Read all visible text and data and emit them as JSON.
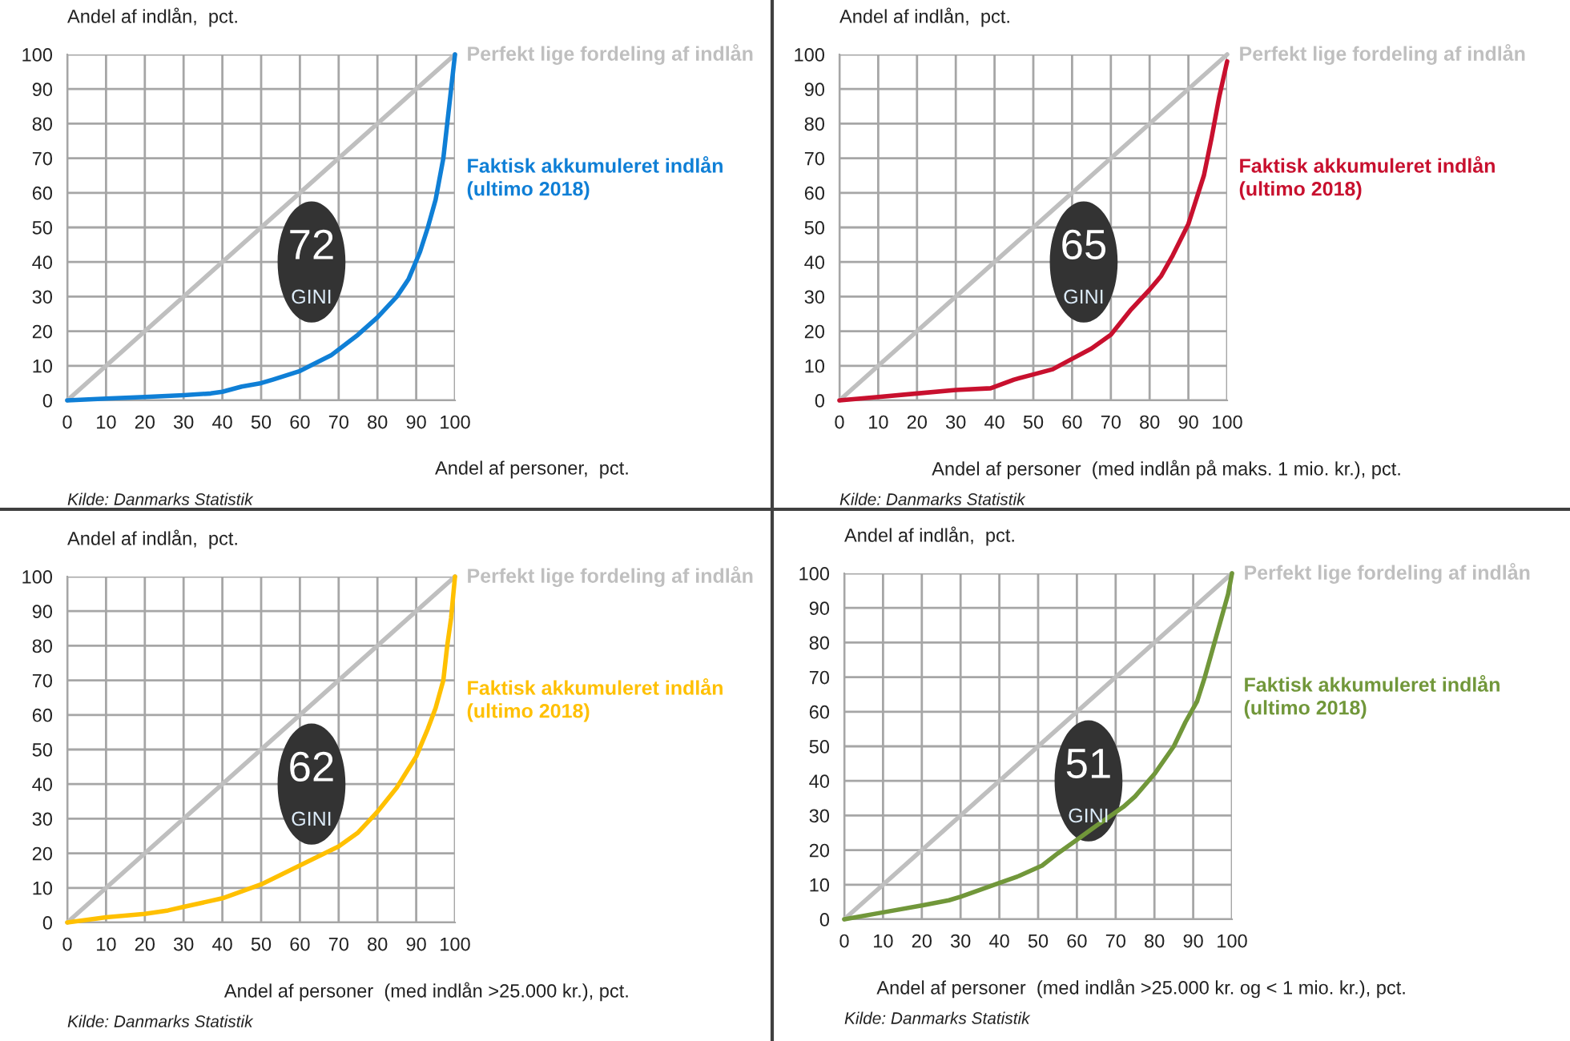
{
  "chart_data": [
    {
      "type": "line",
      "ylabel": "Andel af indlån,  pct.",
      "xlabel": "Andel af personer,  pct.",
      "xlim": [
        0,
        100
      ],
      "ylim": [
        0,
        100
      ],
      "xticks": [
        0,
        10,
        20,
        30,
        40,
        50,
        60,
        70,
        80,
        90,
        100
      ],
      "yticks": [
        0,
        10,
        20,
        30,
        40,
        50,
        60,
        70,
        80,
        90,
        100
      ],
      "grid": true,
      "legend": false,
      "annotations": [
        "72",
        "GINI",
        "Kilde: Danmarks Statistik"
      ],
      "series": [
        {
          "name": "Perfekt lige fordeling af indlån",
          "color": "#bfbfbf",
          "x": [
            0,
            100
          ],
          "values": [
            0,
            100
          ]
        },
        {
          "name": "Faktisk akkumuleret indlån\n(ultimo 2018)",
          "color": "#0f7fd6",
          "x": [
            0,
            10,
            20,
            30,
            37,
            40,
            45,
            50,
            53,
            60,
            68,
            75,
            80,
            85,
            88,
            91,
            93,
            95,
            97,
            98,
            99,
            100
          ],
          "values": [
            0,
            0.5,
            1,
            1.5,
            2,
            2.5,
            4,
            5,
            6,
            8.5,
            13,
            19,
            24,
            30,
            35,
            43,
            50,
            58,
            70,
            80,
            90,
            100
          ]
        }
      ]
    },
    {
      "type": "line",
      "ylabel": "Andel af indlån,  pct.",
      "xlabel": "Andel af personer  (med indlån på maks. 1 mio. kr.), pct.",
      "xlim": [
        0,
        100
      ],
      "ylim": [
        0,
        100
      ],
      "xticks": [
        0,
        10,
        20,
        30,
        40,
        50,
        60,
        70,
        80,
        90,
        100
      ],
      "yticks": [
        0,
        10,
        20,
        30,
        40,
        50,
        60,
        70,
        80,
        90,
        100
      ],
      "grid": true,
      "legend": false,
      "annotations": [
        "65",
        "GINI",
        "Kilde: Danmarks Statistik"
      ],
      "series": [
        {
          "name": "Perfekt lige fordeling af indlån",
          "color": "#bfbfbf",
          "x": [
            0,
            100
          ],
          "values": [
            0,
            100
          ]
        },
        {
          "name": "Faktisk akkumuleret indlån\n(ultimo 2018)",
          "color": "#c8102e",
          "x": [
            0,
            10,
            20,
            30,
            39,
            45,
            50,
            55,
            60,
            65,
            70,
            75,
            80,
            83,
            86,
            90,
            92,
            94,
            96,
            98,
            100
          ],
          "values": [
            0,
            1,
            2,
            3,
            3.5,
            6,
            7.5,
            9,
            12,
            15,
            19,
            26,
            32,
            36,
            42,
            51,
            58,
            65,
            76,
            88,
            98
          ]
        }
      ]
    },
    {
      "type": "line",
      "ylabel": "Andel af indlån,  pct.",
      "xlabel": "Andel af personer  (med indlån >25.000 kr.), pct.",
      "xlim": [
        0,
        100
      ],
      "ylim": [
        0,
        100
      ],
      "xticks": [
        0,
        10,
        20,
        30,
        40,
        50,
        60,
        70,
        80,
        90,
        100
      ],
      "yticks": [
        0,
        10,
        20,
        30,
        40,
        50,
        60,
        70,
        80,
        90,
        100
      ],
      "grid": true,
      "legend": false,
      "annotations": [
        "62",
        "GINI",
        "Kilde: Danmarks Statistik"
      ],
      "series": [
        {
          "name": "Perfekt lige fordeling af indlån",
          "color": "#bfbfbf",
          "x": [
            0,
            100
          ],
          "values": [
            0,
            100
          ]
        },
        {
          "name": "Faktisk akkumuleret indlån\n(ultimo 2018)",
          "color": "#ffc000",
          "x": [
            0,
            10,
            20,
            26,
            30,
            40,
            50,
            60,
            70,
            75,
            80,
            85,
            90,
            93,
            95,
            97,
            98,
            99,
            100
          ],
          "values": [
            0,
            1.5,
            2.5,
            3.5,
            4.5,
            7,
            11,
            16.5,
            22,
            26,
            32,
            39,
            48,
            56,
            62,
            70,
            80,
            88,
            100
          ]
        }
      ]
    },
    {
      "type": "line",
      "ylabel": "Andel af indlån,  pct.",
      "xlabel": "Andel af personer  (med indlån >25.000 kr. og < 1 mio. kr.), pct.",
      "xlim": [
        0,
        100
      ],
      "ylim": [
        0,
        100
      ],
      "xticks": [
        0,
        10,
        20,
        30,
        40,
        50,
        60,
        70,
        80,
        90,
        100
      ],
      "yticks": [
        0,
        10,
        20,
        30,
        40,
        50,
        60,
        70,
        80,
        90,
        100
      ],
      "grid": true,
      "legend": false,
      "annotations": [
        "51",
        "GINI",
        "Kilde: Danmarks Statistik"
      ],
      "series": [
        {
          "name": "Perfekt lige fordeling af indlån",
          "color": "#bfbfbf",
          "x": [
            0,
            100
          ],
          "values": [
            0,
            100
          ]
        },
        {
          "name": "Faktisk akkumuleret indlån\n(ultimo 2018)",
          "color": "#71973a",
          "x": [
            0,
            10,
            20,
            27,
            30,
            40,
            45,
            51,
            55,
            60,
            65,
            72,
            75,
            80,
            85,
            88,
            91,
            93,
            95,
            97,
            99,
            100
          ],
          "values": [
            0,
            2,
            4,
            5.5,
            6.5,
            10.5,
            12.5,
            15.5,
            19,
            23,
            27,
            32.5,
            35.5,
            42,
            50,
            57,
            63,
            70,
            78,
            86,
            94,
            100
          ]
        }
      ]
    }
  ]
}
